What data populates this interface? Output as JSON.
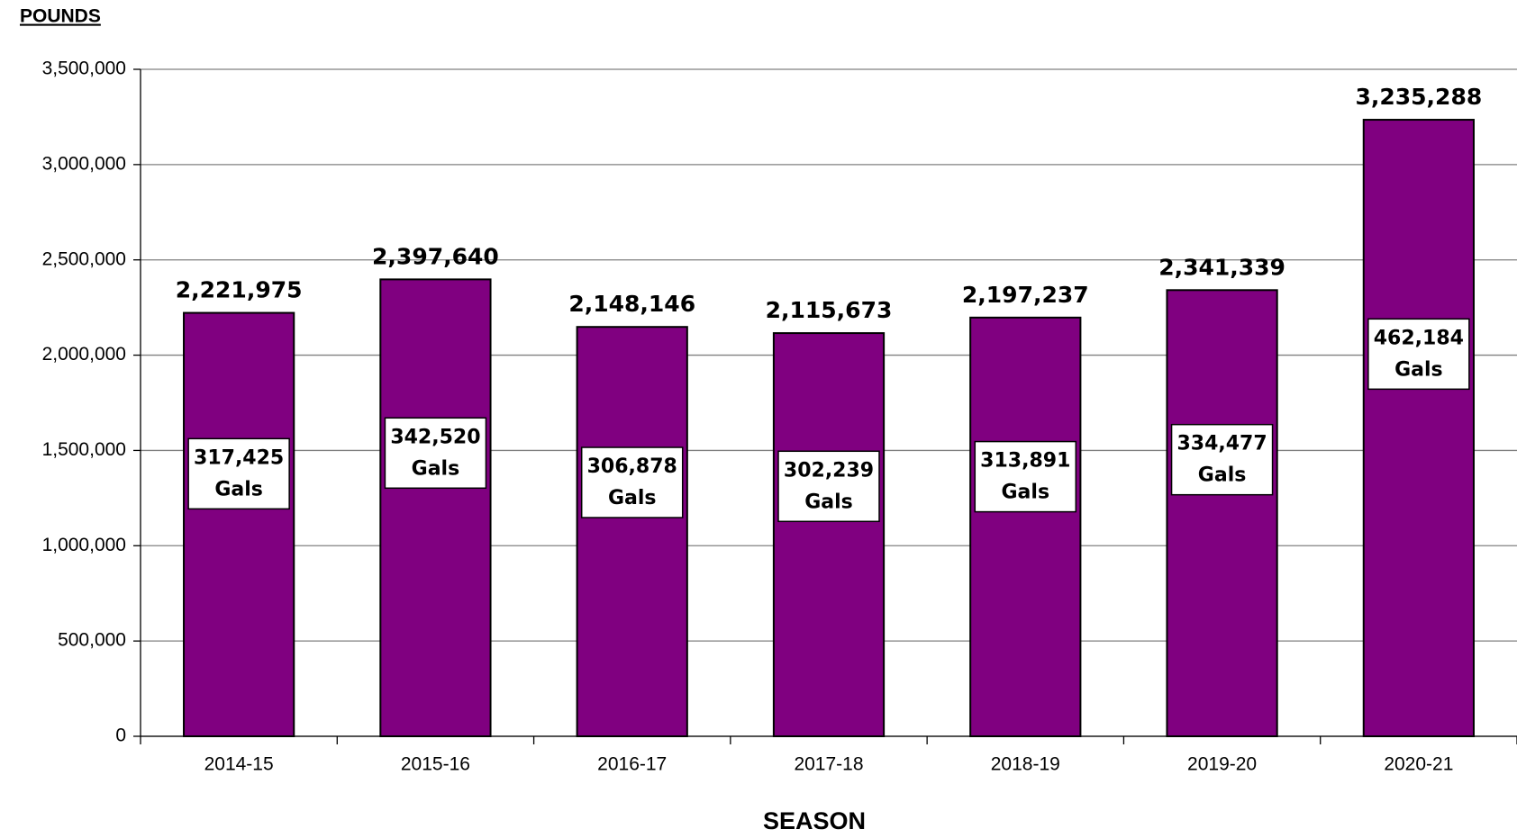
{
  "chart_data": {
    "type": "bar",
    "y_axis_label": "POUNDS",
    "x_axis_label": "SEASON",
    "categories": [
      "2014-15",
      "2015-16",
      "2016-17",
      "2017-18",
      "2018-19",
      "2019-20",
      "2020-21"
    ],
    "values": [
      2221975,
      2397640,
      2148146,
      2115673,
      2197237,
      2341339,
      3235288
    ],
    "value_labels": [
      "2,221,975",
      "2,397,640",
      "2,148,146",
      "2,115,673",
      "2,197,237",
      "2,341,339",
      "3,235,288"
    ],
    "color": "#800080",
    "gallons": {
      "unit": "Gals",
      "values": [
        317425,
        342520,
        306878,
        302239,
        313891,
        334477,
        462184
      ],
      "value_labels": [
        "317,425",
        "342,520",
        "306,878",
        "302,239",
        "313,891",
        "334,477",
        "462,184"
      ]
    },
    "ylim": [
      0,
      3500000
    ],
    "yticks": [
      0,
      {
        "value": 500000,
        "label": "500,000"
      },
      {
        "value": 1000000,
        "label": "1,000,000"
      },
      {
        "value": 1500000,
        "label": "1,500,000"
      },
      {
        "value": 2000000,
        "label": "2,000,000"
      },
      {
        "value": 2500000,
        "label": "2,500,000"
      },
      {
        "value": 3000000,
        "label": "3,000,000"
      },
      {
        "value": 3500000,
        "label": "3,500,000"
      }
    ],
    "grid": true
  }
}
